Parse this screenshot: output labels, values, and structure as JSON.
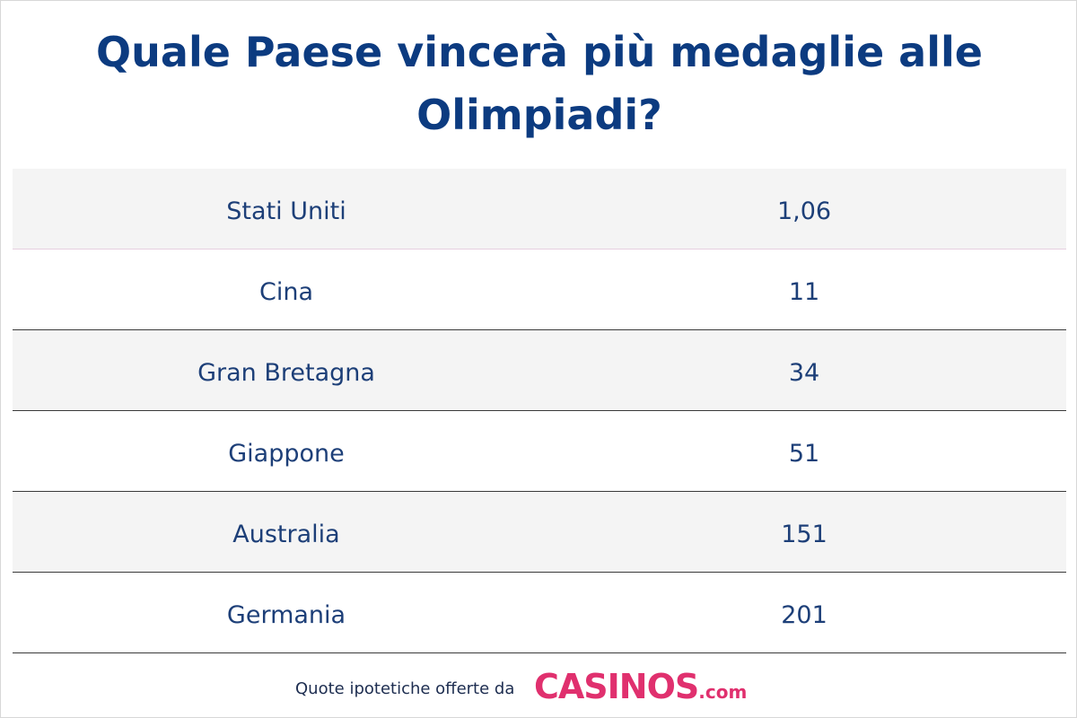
{
  "header": {
    "title": "Quale Paese vincerà più medaglie alle Olimpiadi?"
  },
  "table": {
    "rows": [
      [
        "Stati Uniti",
        "1,06"
      ],
      [
        "Cina",
        "11"
      ],
      [
        "Gran Bretagna",
        "34"
      ],
      [
        "Giappone",
        "51"
      ],
      [
        "Australia",
        "151"
      ],
      [
        "Germania",
        "201"
      ]
    ]
  },
  "footer": {
    "text": "Quote ipotetiche offerte da",
    "logo_main": "CASINOS",
    "logo_suffix": ".com"
  }
}
